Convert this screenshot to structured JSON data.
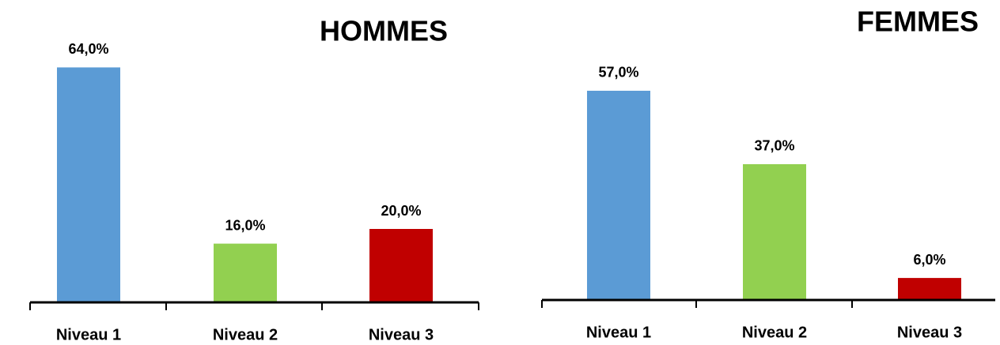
{
  "chart_data": [
    {
      "type": "bar",
      "title": "HOMMES",
      "categories": [
        "Niveau 1",
        "Niveau 2",
        "Niveau 3"
      ],
      "values": [
        64,
        16,
        20
      ],
      "value_labels": [
        "64,0%",
        "16,0%",
        "20,0%"
      ],
      "colors": [
        "#5b9bd5",
        "#92d050",
        "#c00000"
      ]
    },
    {
      "type": "bar",
      "title": "FEMMES",
      "categories": [
        "Niveau 1",
        "Niveau 2",
        "Niveau 3"
      ],
      "values": [
        57,
        37,
        6
      ],
      "value_labels": [
        "57,0%",
        "37,0%",
        "6,0%"
      ],
      "colors": [
        "#5b9bd5",
        "#92d050",
        "#c00000"
      ]
    }
  ]
}
